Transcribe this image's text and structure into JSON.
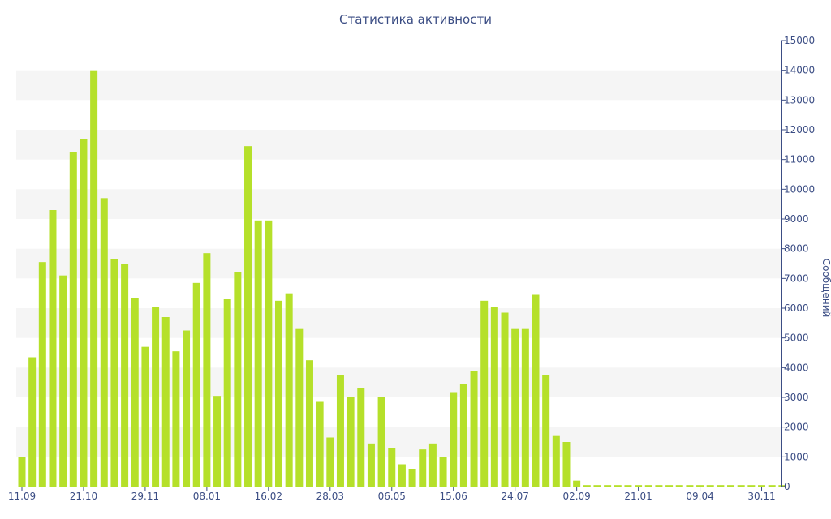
{
  "chart_data": {
    "type": "bar",
    "title": "Статистика активности",
    "ylabel": "Сообщений",
    "xlabel": "",
    "ylim": [
      0,
      15000
    ],
    "y_ticks": [
      0,
      1000,
      2000,
      3000,
      4000,
      5000,
      6000,
      7000,
      8000,
      9000,
      10000,
      11000,
      12000,
      13000,
      14000,
      15000
    ],
    "y_axis_position": "right",
    "x_tick_labels": [
      {
        "label": "11.09",
        "index": 0
      },
      {
        "label": "21.10",
        "index": 6
      },
      {
        "label": "29.11",
        "index": 12
      },
      {
        "label": "08.01",
        "index": 18
      },
      {
        "label": "16.02",
        "index": 24
      },
      {
        "label": "28.03",
        "index": 30
      },
      {
        "label": "06.05",
        "index": 36
      },
      {
        "label": "15.06",
        "index": 42
      },
      {
        "label": "24.07",
        "index": 48
      },
      {
        "label": "02.09",
        "index": 54
      },
      {
        "label": "21.01",
        "index": 60
      },
      {
        "label": "09.04",
        "index": 66
      },
      {
        "label": "30.11",
        "index": 72
      }
    ],
    "grid": "alternating horizontal bands",
    "bar_color": "#b5e02a",
    "band_color": "#f5f5f5",
    "values": [
      1000,
      4350,
      7550,
      9300,
      7100,
      11250,
      11700,
      14000,
      9700,
      7650,
      7500,
      6350,
      4700,
      6050,
      5700,
      4550,
      5250,
      6850,
      7850,
      3050,
      6300,
      7200,
      11450,
      8950,
      8950,
      6250,
      6500,
      5300,
      4250,
      2850,
      1650,
      3750,
      3000,
      3300,
      1450,
      3000,
      1300,
      750,
      600,
      1250,
      1450,
      1000,
      3150,
      3450,
      3900,
      6250,
      6050,
      5850,
      5300,
      5300,
      6450,
      3750,
      1700,
      1500,
      200,
      50,
      50,
      50,
      50,
      50,
      50,
      50,
      50,
      50,
      50,
      50,
      50,
      50,
      50,
      50,
      50,
      50,
      50,
      50,
      50
    ]
  }
}
